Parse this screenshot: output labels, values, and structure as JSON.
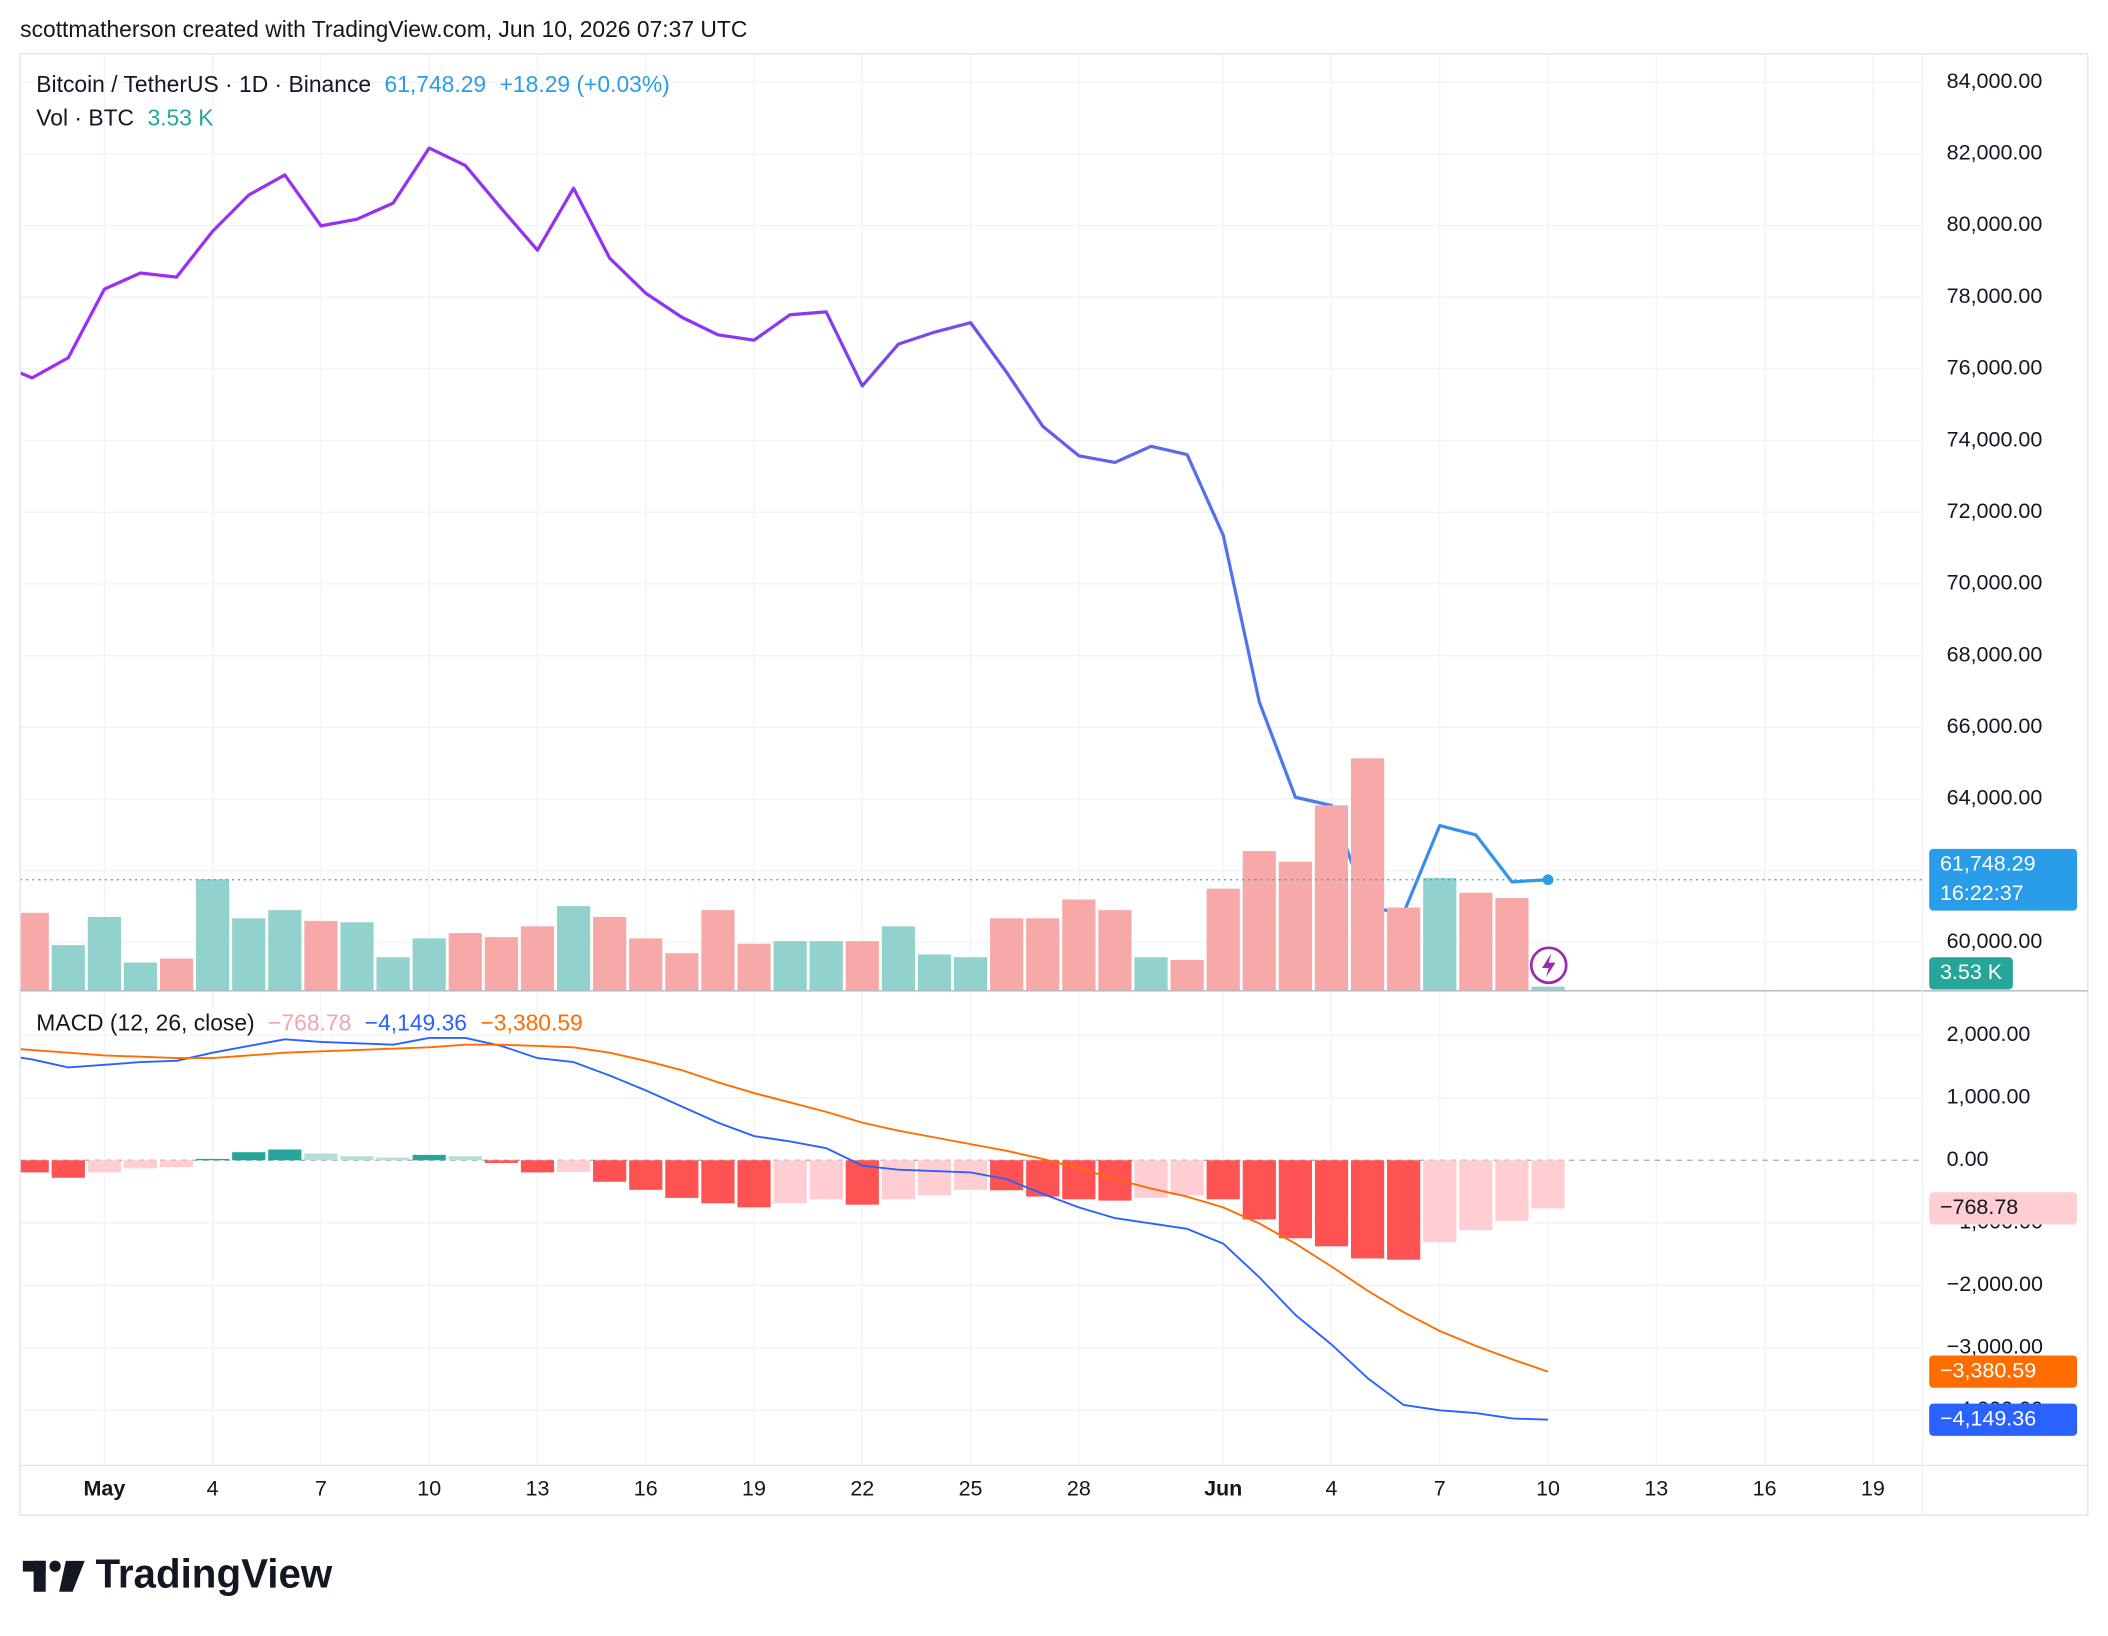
{
  "header": {
    "text": "scottmatherson created with TradingView.com, Jun 10, 2026 07:37 UTC"
  },
  "footer": {
    "brand": "TradingView"
  },
  "chart_data": [
    {
      "type": "line",
      "x": [
        "2026-04-28",
        "2026-04-29",
        "2026-04-30",
        "2026-05-01",
        "2026-05-02",
        "2026-05-03",
        "2026-05-04",
        "2026-05-05",
        "2026-05-06",
        "2026-05-07",
        "2026-05-08",
        "2026-05-09",
        "2026-05-10",
        "2026-05-11",
        "2026-05-12",
        "2026-05-13",
        "2026-05-14",
        "2026-05-15",
        "2026-05-16",
        "2026-05-17",
        "2026-05-18",
        "2026-05-19",
        "2026-05-20",
        "2026-05-21",
        "2026-05-22",
        "2026-05-23",
        "2026-05-24",
        "2026-05-25",
        "2026-05-26",
        "2026-05-27",
        "2026-05-28",
        "2026-05-29",
        "2026-05-30",
        "2026-05-31",
        "2026-06-01",
        "2026-06-02",
        "2026-06-03",
        "2026-06-04",
        "2026-06-05",
        "2026-06-06",
        "2026-06-07",
        "2026-06-08",
        "2026-06-09",
        "2026-06-10"
      ],
      "xlim": [
        "2026-04-28T16:00",
        "2026-06-20T09:00"
      ],
      "ylim": [
        58650,
        84790
      ],
      "yticks": [
        {
          "value": 84000,
          "label": "84,000.00"
        },
        {
          "value": 82000,
          "label": "82,000.00"
        },
        {
          "value": 80000,
          "label": "80,000.00"
        },
        {
          "value": 78000,
          "label": "78,000.00"
        },
        {
          "value": 76000,
          "label": "76,000.00"
        },
        {
          "value": 74000,
          "label": "74,000.00"
        },
        {
          "value": 72000,
          "label": "72,000.00"
        },
        {
          "value": 70000,
          "label": "70,000.00"
        },
        {
          "value": 68000,
          "label": "68,000.00"
        },
        {
          "value": 66000,
          "label": "66,000.00"
        },
        {
          "value": 64000,
          "label": "64,000.00"
        },
        {
          "value": 62000,
          "label": "62,000.00"
        },
        {
          "value": 60000,
          "label": "60,000.00"
        }
      ],
      "y2lim": [
        0,
        792000
      ],
      "grid": true,
      "change": "+18.29 (+0.03%)",
      "countdown": "16:22:37",
      "series": [
        {
          "name": "Bitcoin / TetherUS · 1D · Binance",
          "type": "line",
          "colors": [
            "#a22cf5",
            "#8c36f0",
            "#2a9de8"
          ],
          "values": [
            76160,
            75750,
            76310,
            78225,
            78675,
            78560,
            79840,
            80850,
            81410,
            79990,
            80175,
            80625,
            82160,
            81675,
            80475,
            79310,
            81040,
            79090,
            78110,
            77440,
            76950,
            76800,
            77510,
            77590,
            75525,
            76690,
            77025,
            77290,
            75900,
            74400,
            73575,
            73390,
            73840,
            73610,
            71360,
            66710,
            64050,
            63820,
            60975,
            60825,
            63260,
            63000,
            61690,
            61748.29
          ],
          "value_labels": [
            null,
            null,
            null,
            null,
            null,
            null,
            null,
            null,
            null,
            null,
            null,
            null,
            null,
            null,
            null,
            null,
            null,
            null,
            null,
            null,
            null,
            null,
            null,
            null,
            null,
            null,
            null,
            null,
            null,
            null,
            null,
            null,
            null,
            null,
            null,
            null,
            null,
            null,
            null,
            null,
            null,
            null,
            null,
            "61,748.29"
          ]
        },
        {
          "name": "Vol · BTC",
          "type": "bar",
          "axis": "y2",
          "up_color": "#92d2cc",
          "down_color": "#f7a9a7",
          "label_color": "#26a69a",
          "values": [
            null,
            65900,
            38600,
            62500,
            23900,
            27300,
            94300,
            61300,
            68200,
            59100,
            57900,
            28400,
            44300,
            48800,
            45400,
            54500,
            71600,
            62500,
            44300,
            31800,
            68200,
            39800,
            42000,
            42000,
            42000,
            54500,
            30700,
            28400,
            61300,
            61300,
            77200,
            68200,
            28400,
            26100,
            86300,
            118100,
            109100,
            156800,
            196500,
            70400,
            95400,
            82900,
            78400,
            3530
          ],
          "value_labels": [
            null,
            null,
            null,
            null,
            null,
            null,
            null,
            null,
            null,
            null,
            null,
            null,
            null,
            null,
            null,
            null,
            null,
            null,
            null,
            null,
            null,
            null,
            null,
            null,
            null,
            null,
            null,
            null,
            null,
            null,
            null,
            null,
            null,
            null,
            null,
            null,
            null,
            null,
            null,
            null,
            null,
            null,
            null,
            "3.53 K"
          ]
        }
      ]
    },
    {
      "type": "line",
      "title": "MACD (12, 26, close)",
      "x": [
        "2026-04-28",
        "2026-04-29",
        "2026-04-30",
        "2026-05-01",
        "2026-05-02",
        "2026-05-03",
        "2026-05-04",
        "2026-05-05",
        "2026-05-06",
        "2026-05-07",
        "2026-05-08",
        "2026-05-09",
        "2026-05-10",
        "2026-05-11",
        "2026-05-12",
        "2026-05-13",
        "2026-05-14",
        "2026-05-15",
        "2026-05-16",
        "2026-05-17",
        "2026-05-18",
        "2026-05-19",
        "2026-05-20",
        "2026-05-21",
        "2026-05-22",
        "2026-05-23",
        "2026-05-24",
        "2026-05-25",
        "2026-05-26",
        "2026-05-27",
        "2026-05-28",
        "2026-05-29",
        "2026-05-30",
        "2026-05-31",
        "2026-06-01",
        "2026-06-02",
        "2026-06-03",
        "2026-06-04",
        "2026-06-05",
        "2026-06-06",
        "2026-06-07",
        "2026-06-08",
        "2026-06-09",
        "2026-06-10"
      ],
      "xlim": [
        "2026-04-28T16:00",
        "2026-06-20T09:00"
      ],
      "xticks": [
        {
          "value": "2026-05-01",
          "label": "May"
        },
        {
          "value": "2026-05-04",
          "label": "4"
        },
        {
          "value": "2026-05-07",
          "label": "7"
        },
        {
          "value": "2026-05-10",
          "label": "10"
        },
        {
          "value": "2026-05-13",
          "label": "13"
        },
        {
          "value": "2026-05-16",
          "label": "16"
        },
        {
          "value": "2026-05-19",
          "label": "19"
        },
        {
          "value": "2026-05-22",
          "label": "22"
        },
        {
          "value": "2026-05-25",
          "label": "25"
        },
        {
          "value": "2026-05-28",
          "label": "28"
        },
        {
          "value": "2026-06-01",
          "label": "Jun"
        },
        {
          "value": "2026-06-04",
          "label": "4"
        },
        {
          "value": "2026-06-07",
          "label": "7"
        },
        {
          "value": "2026-06-10",
          "label": "10"
        },
        {
          "value": "2026-06-13",
          "label": "13"
        },
        {
          "value": "2026-06-16",
          "label": "16"
        },
        {
          "value": "2026-06-19",
          "label": "19"
        }
      ],
      "ylim": [
        -4880,
        2710
      ],
      "yticks": [
        {
          "value": 2000,
          "label": "2,000.00"
        },
        {
          "value": 1000,
          "label": "1,000.00"
        },
        {
          "value": 0,
          "label": "0.00"
        },
        {
          "value": -1000,
          "label": "−1,000.00"
        },
        {
          "value": -2000,
          "label": "−2,000.00"
        },
        {
          "value": -3000,
          "label": "−3,000.00"
        },
        {
          "value": -4000,
          "label": "−4,000.00"
        }
      ],
      "grid": true,
      "series": [
        {
          "type": "bar",
          "colors": {
            "up_strong": "#26a69a",
            "up_weak": "#b2dfdb",
            "down_strong": "#ff5252",
            "down_weak": "#ffcdd2"
          },
          "values": [
            -150,
            -194,
            -280,
            -194,
            -129,
            -108,
            22,
            129,
            172,
            108,
            65,
            43,
            86,
            65,
            -43,
            -194,
            -185,
            -344,
            -473,
            -602,
            -688,
            -753,
            -688,
            -624,
            -710,
            -624,
            -559,
            -473,
            -480,
            -581,
            -624,
            -645,
            -602,
            -559,
            -624,
            -946,
            -1247,
            -1376,
            -1570,
            -1591,
            -1312,
            -1118,
            -968,
            -768.78
          ],
          "value_labels": [
            null,
            null,
            null,
            null,
            null,
            null,
            null,
            null,
            null,
            null,
            null,
            null,
            null,
            null,
            null,
            null,
            null,
            null,
            null,
            null,
            null,
            null,
            null,
            null,
            null,
            null,
            null,
            null,
            null,
            null,
            null,
            null,
            null,
            null,
            null,
            null,
            null,
            null,
            null,
            null,
            null,
            null,
            null,
            "−768.78"
          ]
        },
        {
          "type": "line",
          "color": "#2962ff",
          "values": [
            1699,
            1613,
            1484,
            1527,
            1570,
            1591,
            1720,
            1828,
            1935,
            1892,
            1871,
            1849,
            1957,
            1957,
            1828,
            1634,
            1570,
            1355,
            1118,
            860,
            602,
            387,
            301,
            194,
            -86,
            -151,
            -172,
            -194,
            -301,
            -538,
            -753,
            -925,
            -1011,
            -1097,
            -1333,
            -1871,
            -2473,
            -2946,
            -3484,
            -3914,
            -4000,
            -4043,
            -4129,
            -4149.36
          ],
          "value_labels": [
            null,
            null,
            null,
            null,
            null,
            null,
            null,
            null,
            null,
            null,
            null,
            null,
            null,
            null,
            null,
            null,
            null,
            null,
            null,
            null,
            null,
            null,
            null,
            null,
            null,
            null,
            null,
            null,
            null,
            null,
            null,
            null,
            null,
            null,
            null,
            null,
            null,
            null,
            null,
            null,
            null,
            null,
            null,
            "−4,149.36"
          ]
        },
        {
          "type": "line",
          "color": "#ff6d00",
          "values": [
            1806,
            1763,
            1720,
            1677,
            1656,
            1634,
            1634,
            1677,
            1720,
            1742,
            1763,
            1785,
            1806,
            1849,
            1849,
            1828,
            1806,
            1720,
            1591,
            1441,
            1247,
            1075,
            925,
            774,
            602,
            473,
            366,
            258,
            151,
            22,
            -129,
            -301,
            -452,
            -581,
            -753,
            -1011,
            -1333,
            -1699,
            -2086,
            -2430,
            -2731,
            -2968,
            -3183,
            -3380.59
          ],
          "value_labels": [
            null,
            null,
            null,
            null,
            null,
            null,
            null,
            null,
            null,
            null,
            null,
            null,
            null,
            null,
            null,
            null,
            null,
            null,
            null,
            null,
            null,
            null,
            null,
            null,
            null,
            null,
            null,
            null,
            null,
            null,
            null,
            null,
            null,
            null,
            null,
            null,
            null,
            null,
            null,
            null,
            null,
            null,
            null,
            "−3,380.59"
          ]
        }
      ]
    }
  ]
}
